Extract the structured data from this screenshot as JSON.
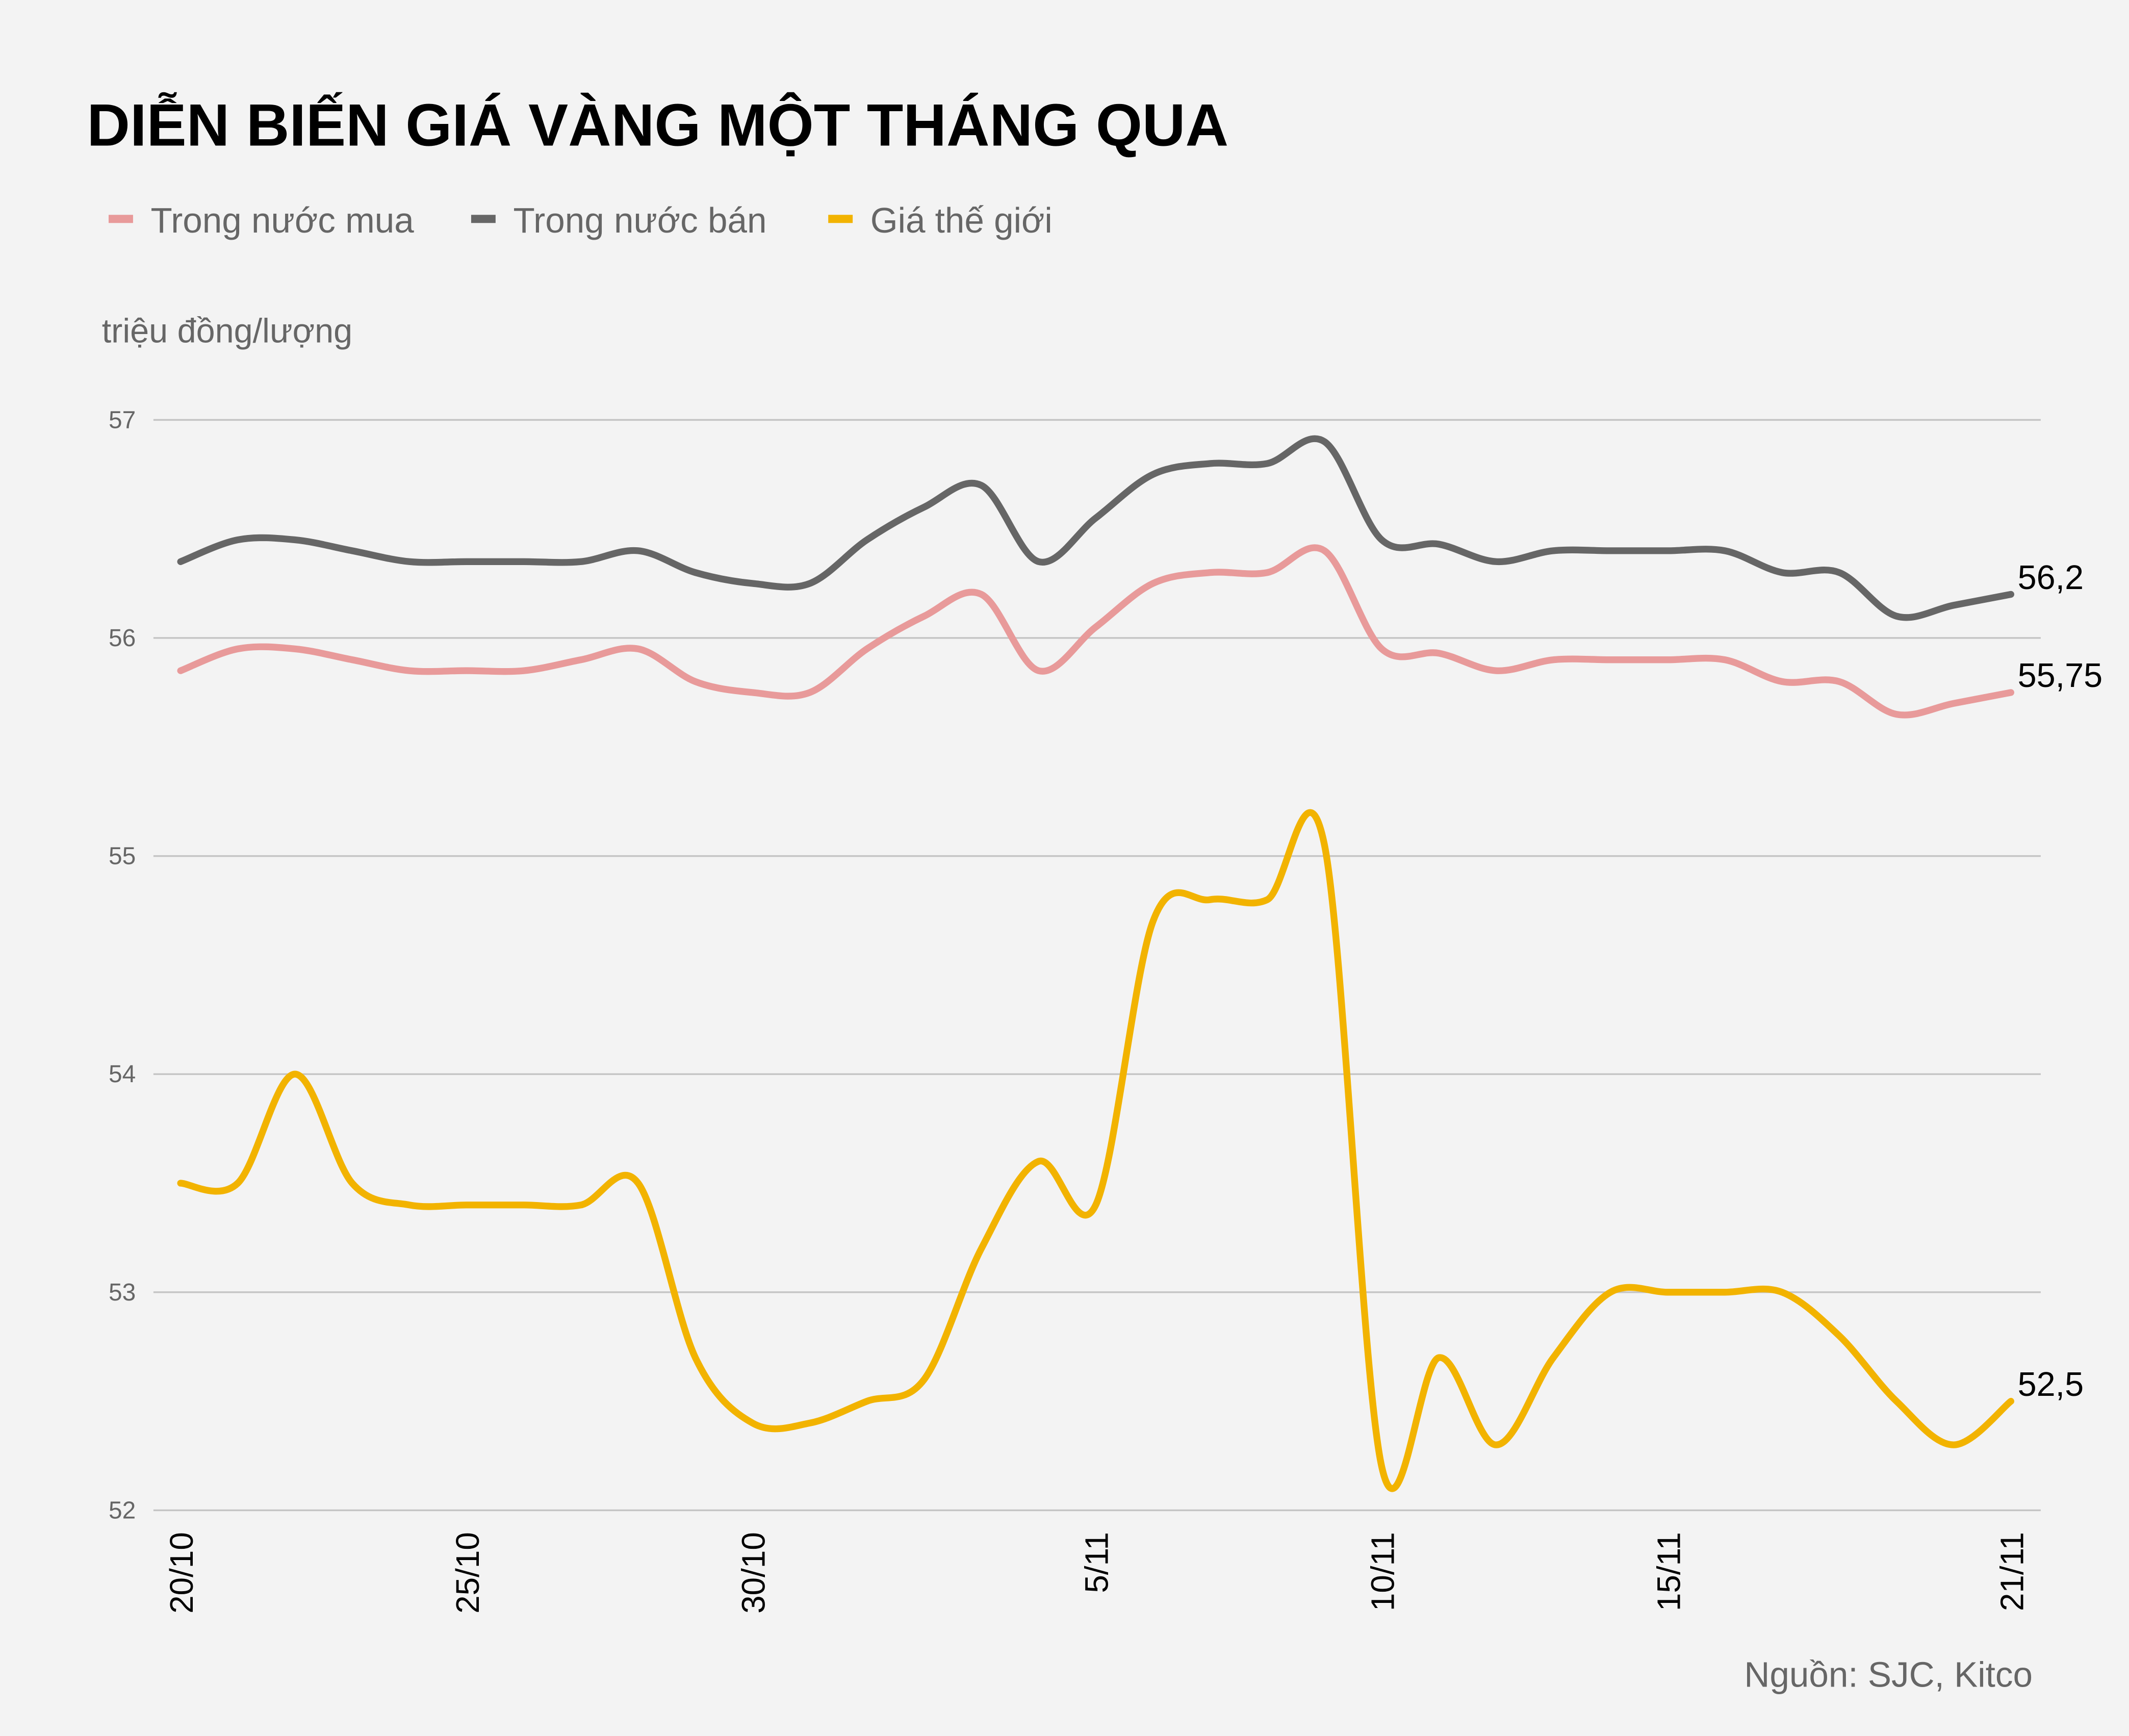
{
  "chart_data": {
    "type": "line",
    "title": "DIỄN BIẾN GIÁ VÀNG MỘT THÁNG QUA",
    "ylabel": "triệu đồng/lượng",
    "source": "Nguồn: SJC, Kitco",
    "ylim": [
      52,
      57
    ],
    "yticks": [
      "52",
      "53",
      "54",
      "55",
      "56",
      "57"
    ],
    "grid": true,
    "legend_placement": "top-left",
    "x": [
      "20/10",
      "21/10",
      "22/10",
      "23/10",
      "24/10",
      "25/10",
      "26/10",
      "27/10",
      "28/10",
      "29/10",
      "30/10",
      "31/10",
      "1/11",
      "2/11",
      "3/11",
      "4/11",
      "5/11",
      "6/11",
      "7/11",
      "8/11",
      "9/11",
      "10/11",
      "11/11",
      "12/11",
      "13/11",
      "14/11",
      "15/11",
      "16/11",
      "17/11",
      "18/11",
      "19/11",
      "20/11",
      "21/11"
    ],
    "xticks": [
      "20/10",
      "25/10",
      "30/10",
      "5/11",
      "10/11",
      "15/11",
      "21/11"
    ],
    "series": [
      {
        "name": "Trong nước mua",
        "color": "#e89a9a",
        "values": [
          55.85,
          55.95,
          55.95,
          55.9,
          55.85,
          55.85,
          55.85,
          55.9,
          55.95,
          55.8,
          55.75,
          55.75,
          55.95,
          56.1,
          56.2,
          55.85,
          56.05,
          56.25,
          56.3,
          56.3,
          56.4,
          55.95,
          55.93,
          55.85,
          55.9,
          55.9,
          55.9,
          55.9,
          55.8,
          55.8,
          55.65,
          55.7,
          55.75
        ],
        "end_label": "55,75"
      },
      {
        "name": "Trong nước bán",
        "color": "#666666",
        "values": [
          56.35,
          56.45,
          56.45,
          56.4,
          56.35,
          56.35,
          56.35,
          56.35,
          56.4,
          56.3,
          56.25,
          56.25,
          56.45,
          56.6,
          56.7,
          56.35,
          56.55,
          56.75,
          56.8,
          56.8,
          56.9,
          56.45,
          56.43,
          56.35,
          56.4,
          56.4,
          56.4,
          56.4,
          56.3,
          56.3,
          56.1,
          56.15,
          56.2
        ],
        "end_label": "56,2"
      },
      {
        "name": "Giá thế giới",
        "color": "#f2b300",
        "values": [
          53.5,
          53.5,
          54.0,
          53.5,
          53.4,
          53.4,
          53.4,
          53.4,
          53.5,
          52.7,
          52.4,
          52.4,
          52.5,
          52.6,
          53.2,
          53.6,
          53.4,
          54.7,
          54.8,
          54.8,
          55.05,
          52.2,
          52.7,
          52.3,
          52.7,
          53.0,
          53.0,
          53.0,
          53.0,
          52.8,
          52.5,
          52.3,
          52.5
        ],
        "end_label": "52,5"
      }
    ]
  }
}
